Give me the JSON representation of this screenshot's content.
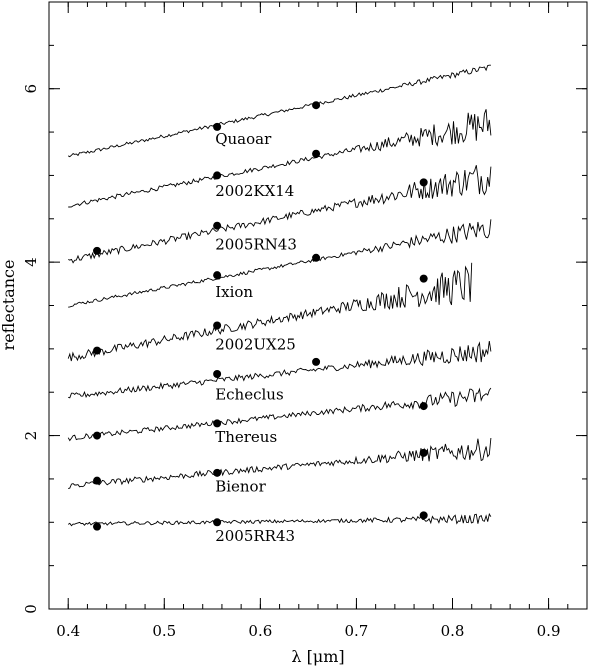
{
  "chart_data": {
    "type": "line",
    "title": "",
    "xlabel": "λ [μm]",
    "ylabel": "reflectance",
    "xlim": [
      0.38,
      0.94
    ],
    "ylim": [
      0,
      7.0
    ],
    "xticks": [
      "0.4",
      "0.5",
      "0.6",
      "0.7",
      "0.8",
      "0.9"
    ],
    "yticks": [
      "0",
      "2",
      "4",
      "6"
    ],
    "grid": false,
    "legend": "none",
    "series": [
      {
        "name": "Quaoar",
        "spectrum": {
          "x_start": 0.4,
          "x_end": 0.84,
          "y_start": 5.22,
          "y_end": 6.25,
          "noise": 0.02,
          "noise_red": 0.04
        },
        "photometry": [
          {
            "x": 0.555,
            "y": 5.56
          },
          {
            "x": 0.658,
            "y": 5.81
          }
        ]
      },
      {
        "name": "2002KX14",
        "spectrum": {
          "x_start": 0.4,
          "x_end": 0.84,
          "y_start": 4.65,
          "y_end": 5.6,
          "noise": 0.025,
          "noise_red": 0.22
        },
        "photometry": [
          {
            "x": 0.555,
            "y": 5.0
          },
          {
            "x": 0.658,
            "y": 5.25
          }
        ]
      },
      {
        "name": "2005RN43",
        "spectrum": {
          "x_start": 0.4,
          "x_end": 0.84,
          "y_start": 4.02,
          "y_end": 5.0,
          "noise": 0.04,
          "noise_red": 0.22
        },
        "photometry": [
          {
            "x": 0.43,
            "y": 4.13
          },
          {
            "x": 0.555,
            "y": 4.42
          },
          {
            "x": 0.77,
            "y": 4.92
          }
        ]
      },
      {
        "name": "Ixion",
        "spectrum": {
          "x_start": 0.4,
          "x_end": 0.84,
          "y_start": 3.5,
          "y_end": 4.4,
          "noise": 0.02,
          "noise_red": 0.14
        },
        "photometry": [
          {
            "x": 0.555,
            "y": 3.85
          },
          {
            "x": 0.658,
            "y": 4.05
          }
        ]
      },
      {
        "name": "2002UX25",
        "spectrum": {
          "x_start": 0.4,
          "x_end": 0.82,
          "y_start": 2.9,
          "y_end": 3.75,
          "noise": 0.05,
          "noise_red": 0.25
        },
        "photometry": [
          {
            "x": 0.43,
            "y": 2.98
          },
          {
            "x": 0.555,
            "y": 3.27
          },
          {
            "x": 0.77,
            "y": 3.81
          }
        ]
      },
      {
        "name": "Echeclus",
        "spectrum": {
          "x_start": 0.4,
          "x_end": 0.84,
          "y_start": 2.45,
          "y_end": 2.98,
          "noise": 0.035,
          "noise_red": 0.14
        },
        "photometry": [
          {
            "x": 0.555,
            "y": 2.71
          },
          {
            "x": 0.658,
            "y": 2.85
          }
        ]
      },
      {
        "name": "Thereus",
        "spectrum": {
          "x_start": 0.4,
          "x_end": 0.84,
          "y_start": 1.97,
          "y_end": 2.47,
          "noise": 0.03,
          "noise_red": 0.12
        },
        "photometry": [
          {
            "x": 0.43,
            "y": 2.0
          },
          {
            "x": 0.555,
            "y": 2.14
          },
          {
            "x": 0.77,
            "y": 2.34
          }
        ]
      },
      {
        "name": "Bienor",
        "spectrum": {
          "x_start": 0.4,
          "x_end": 0.84,
          "y_start": 1.42,
          "y_end": 1.85,
          "noise": 0.035,
          "noise_red": 0.14
        },
        "photometry": [
          {
            "x": 0.43,
            "y": 1.48
          },
          {
            "x": 0.555,
            "y": 1.57
          },
          {
            "x": 0.77,
            "y": 1.8
          }
        ]
      },
      {
        "name": "2005RR43",
        "spectrum": {
          "x_start": 0.4,
          "x_end": 0.84,
          "y_start": 0.98,
          "y_end": 1.04,
          "noise": 0.02,
          "noise_red": 0.06
        },
        "photometry": [
          {
            "x": 0.43,
            "y": 0.95
          },
          {
            "x": 0.555,
            "y": 1.0
          },
          {
            "x": 0.77,
            "y": 1.08
          }
        ]
      }
    ]
  }
}
